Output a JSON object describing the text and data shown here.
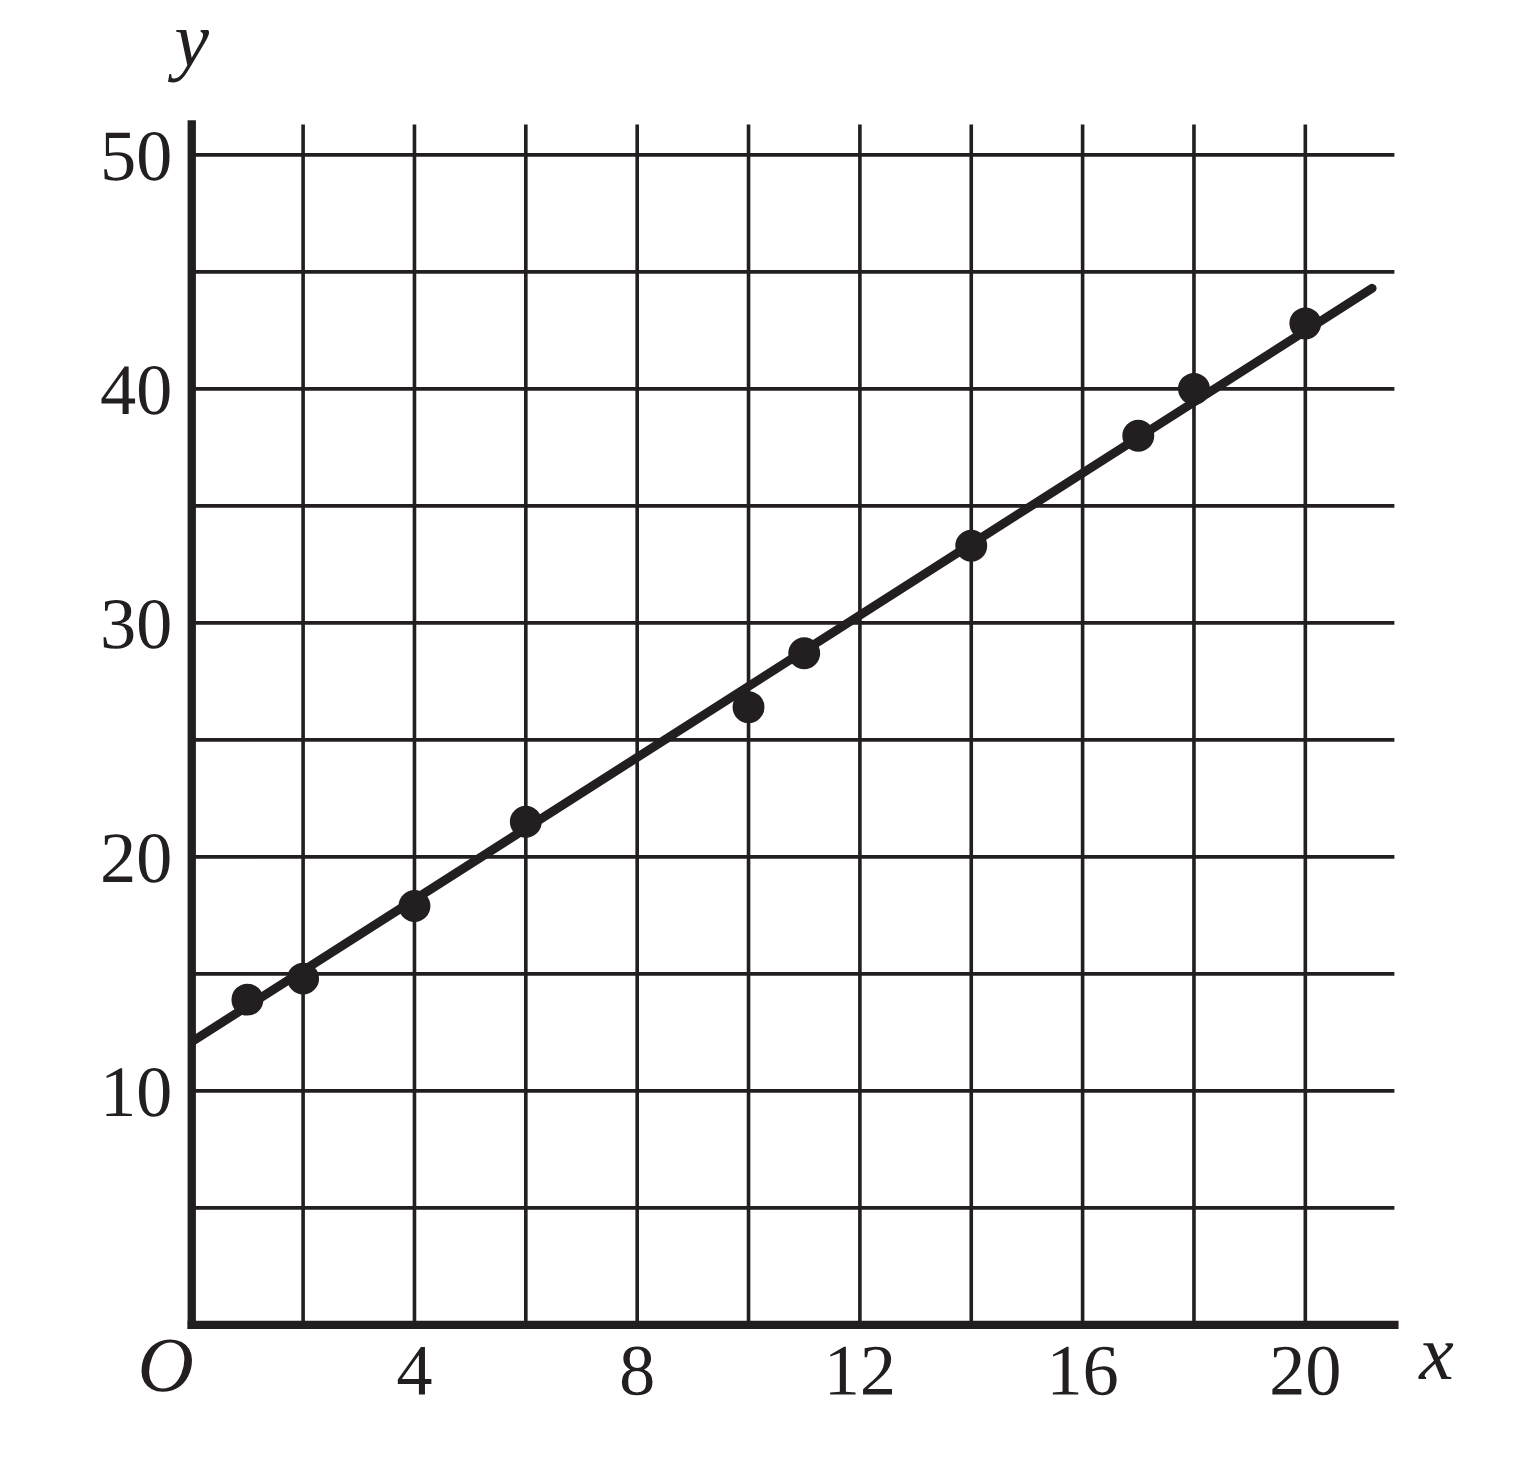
{
  "chart_data": {
    "type": "scatter",
    "xlabel": "x",
    "ylabel": "y",
    "series": [
      {
        "color": "#231f20",
        "marker": "circle",
        "x": [
          1,
          2,
          4,
          6,
          10,
          11,
          14,
          17,
          18,
          20
        ],
        "values": [
          13.9,
          14.8,
          17.9,
          21.5,
          26.4,
          28.7,
          33.3,
          38.0,
          40.0,
          42.8
        ]
      },
      {
        "type": "line",
        "color": "#231f20",
        "marker": "none",
        "line_style": "solid",
        "x": [
          0,
          21.2
        ],
        "values": [
          12.1,
          44.3
        ]
      }
    ],
    "xlim": [
      0,
      21.6
    ],
    "ylim": [
      0,
      51.3
    ],
    "xticks": [
      {
        "value": 2,
        "label": null
      },
      4,
      {
        "value": 6,
        "label": null
      },
      8,
      {
        "value": 10,
        "label": null
      },
      12,
      {
        "value": 14,
        "label": null
      },
      16,
      {
        "value": 18,
        "label": null
      },
      20
    ],
    "yticks": [
      {
        "value": 5,
        "label": null
      },
      10,
      {
        "value": 15,
        "label": null
      },
      20,
      {
        "value": 25,
        "label": null
      },
      30,
      {
        "value": 35,
        "label": null
      },
      40,
      {
        "value": 45,
        "label": null
      },
      50
    ],
    "annotations": [
      "O"
    ],
    "grid": true,
    "legend": false
  }
}
